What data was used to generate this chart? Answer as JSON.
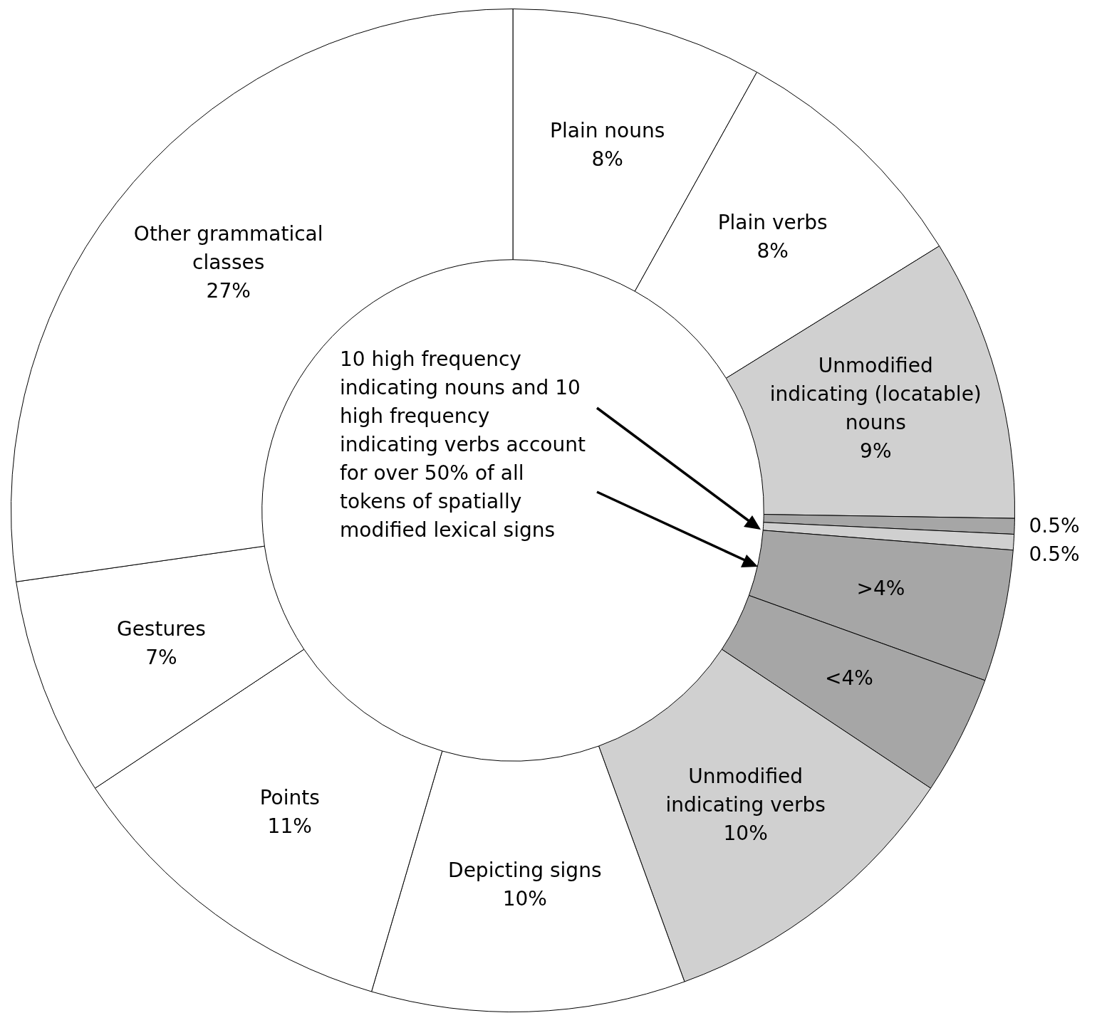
{
  "chart_data": {
    "type": "donut",
    "categories": [
      "Plain nouns",
      "Plain verbs",
      "Unmodified indicating (locatable) nouns",
      null,
      null,
      null,
      null,
      "Unmodified indicating verbs",
      "Depicting signs",
      "Points",
      "Gestures",
      "Other grammatical classes"
    ],
    "values": [
      8,
      8,
      9,
      0.5,
      0.5,
      4.2,
      3.8,
      10,
      10,
      11,
      7,
      27
    ],
    "value_labels": [
      "8%",
      "8%",
      "9%",
      "0.5%",
      "0.5%",
      ">4%",
      "<4%",
      "10%",
      "10%",
      "11%",
      "7%",
      "27%"
    ],
    "colors": [
      "#ffffff",
      "#ffffff",
      "#d0d0d0",
      "#a6a6a6",
      "#d0d0d0",
      "#a6a6a6",
      "#a6a6a6",
      "#d0d0d0",
      "#ffffff",
      "#ffffff",
      "#ffffff",
      "#ffffff"
    ],
    "annotations": [
      "10 high frequency indicating nouns and 10 high frequency indicating verbs account for over 50% of all tokens of spatially modified lexical signs"
    ],
    "legend": false
  }
}
